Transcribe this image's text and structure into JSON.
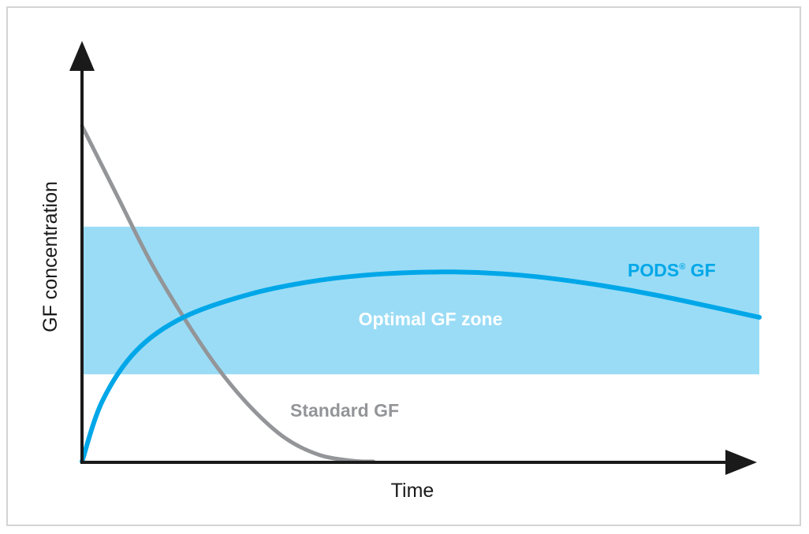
{
  "chart_data": {
    "type": "line",
    "xlabel": "Time",
    "ylabel": "GF concentration",
    "xlim": [
      0,
      100
    ],
    "ylim": [
      0,
      100
    ],
    "zone": {
      "label": "Optimal GF zone",
      "range": [
        26,
        70
      ],
      "color": "#9adcf6"
    },
    "series": [
      {
        "name": "Standard GF",
        "color": "#939598",
        "x": [
          0,
          5,
          10,
          15,
          20,
          25,
          30,
          35,
          40,
          43
        ],
        "y": [
          100,
          80,
          60,
          43,
          28,
          16,
          7,
          2,
          0.2,
          0
        ]
      },
      {
        "name": "PODS",
        "name_sup": "®",
        "name_suffix": " GF",
        "color": "#00a7e8",
        "x": [
          0,
          3,
          8,
          15,
          25,
          35,
          45,
          55,
          65,
          75,
          85,
          100
        ],
        "y": [
          0,
          18,
          33,
          43,
          50,
          54,
          56,
          56.5,
          55.5,
          53,
          49.5,
          43
        ]
      }
    ]
  }
}
